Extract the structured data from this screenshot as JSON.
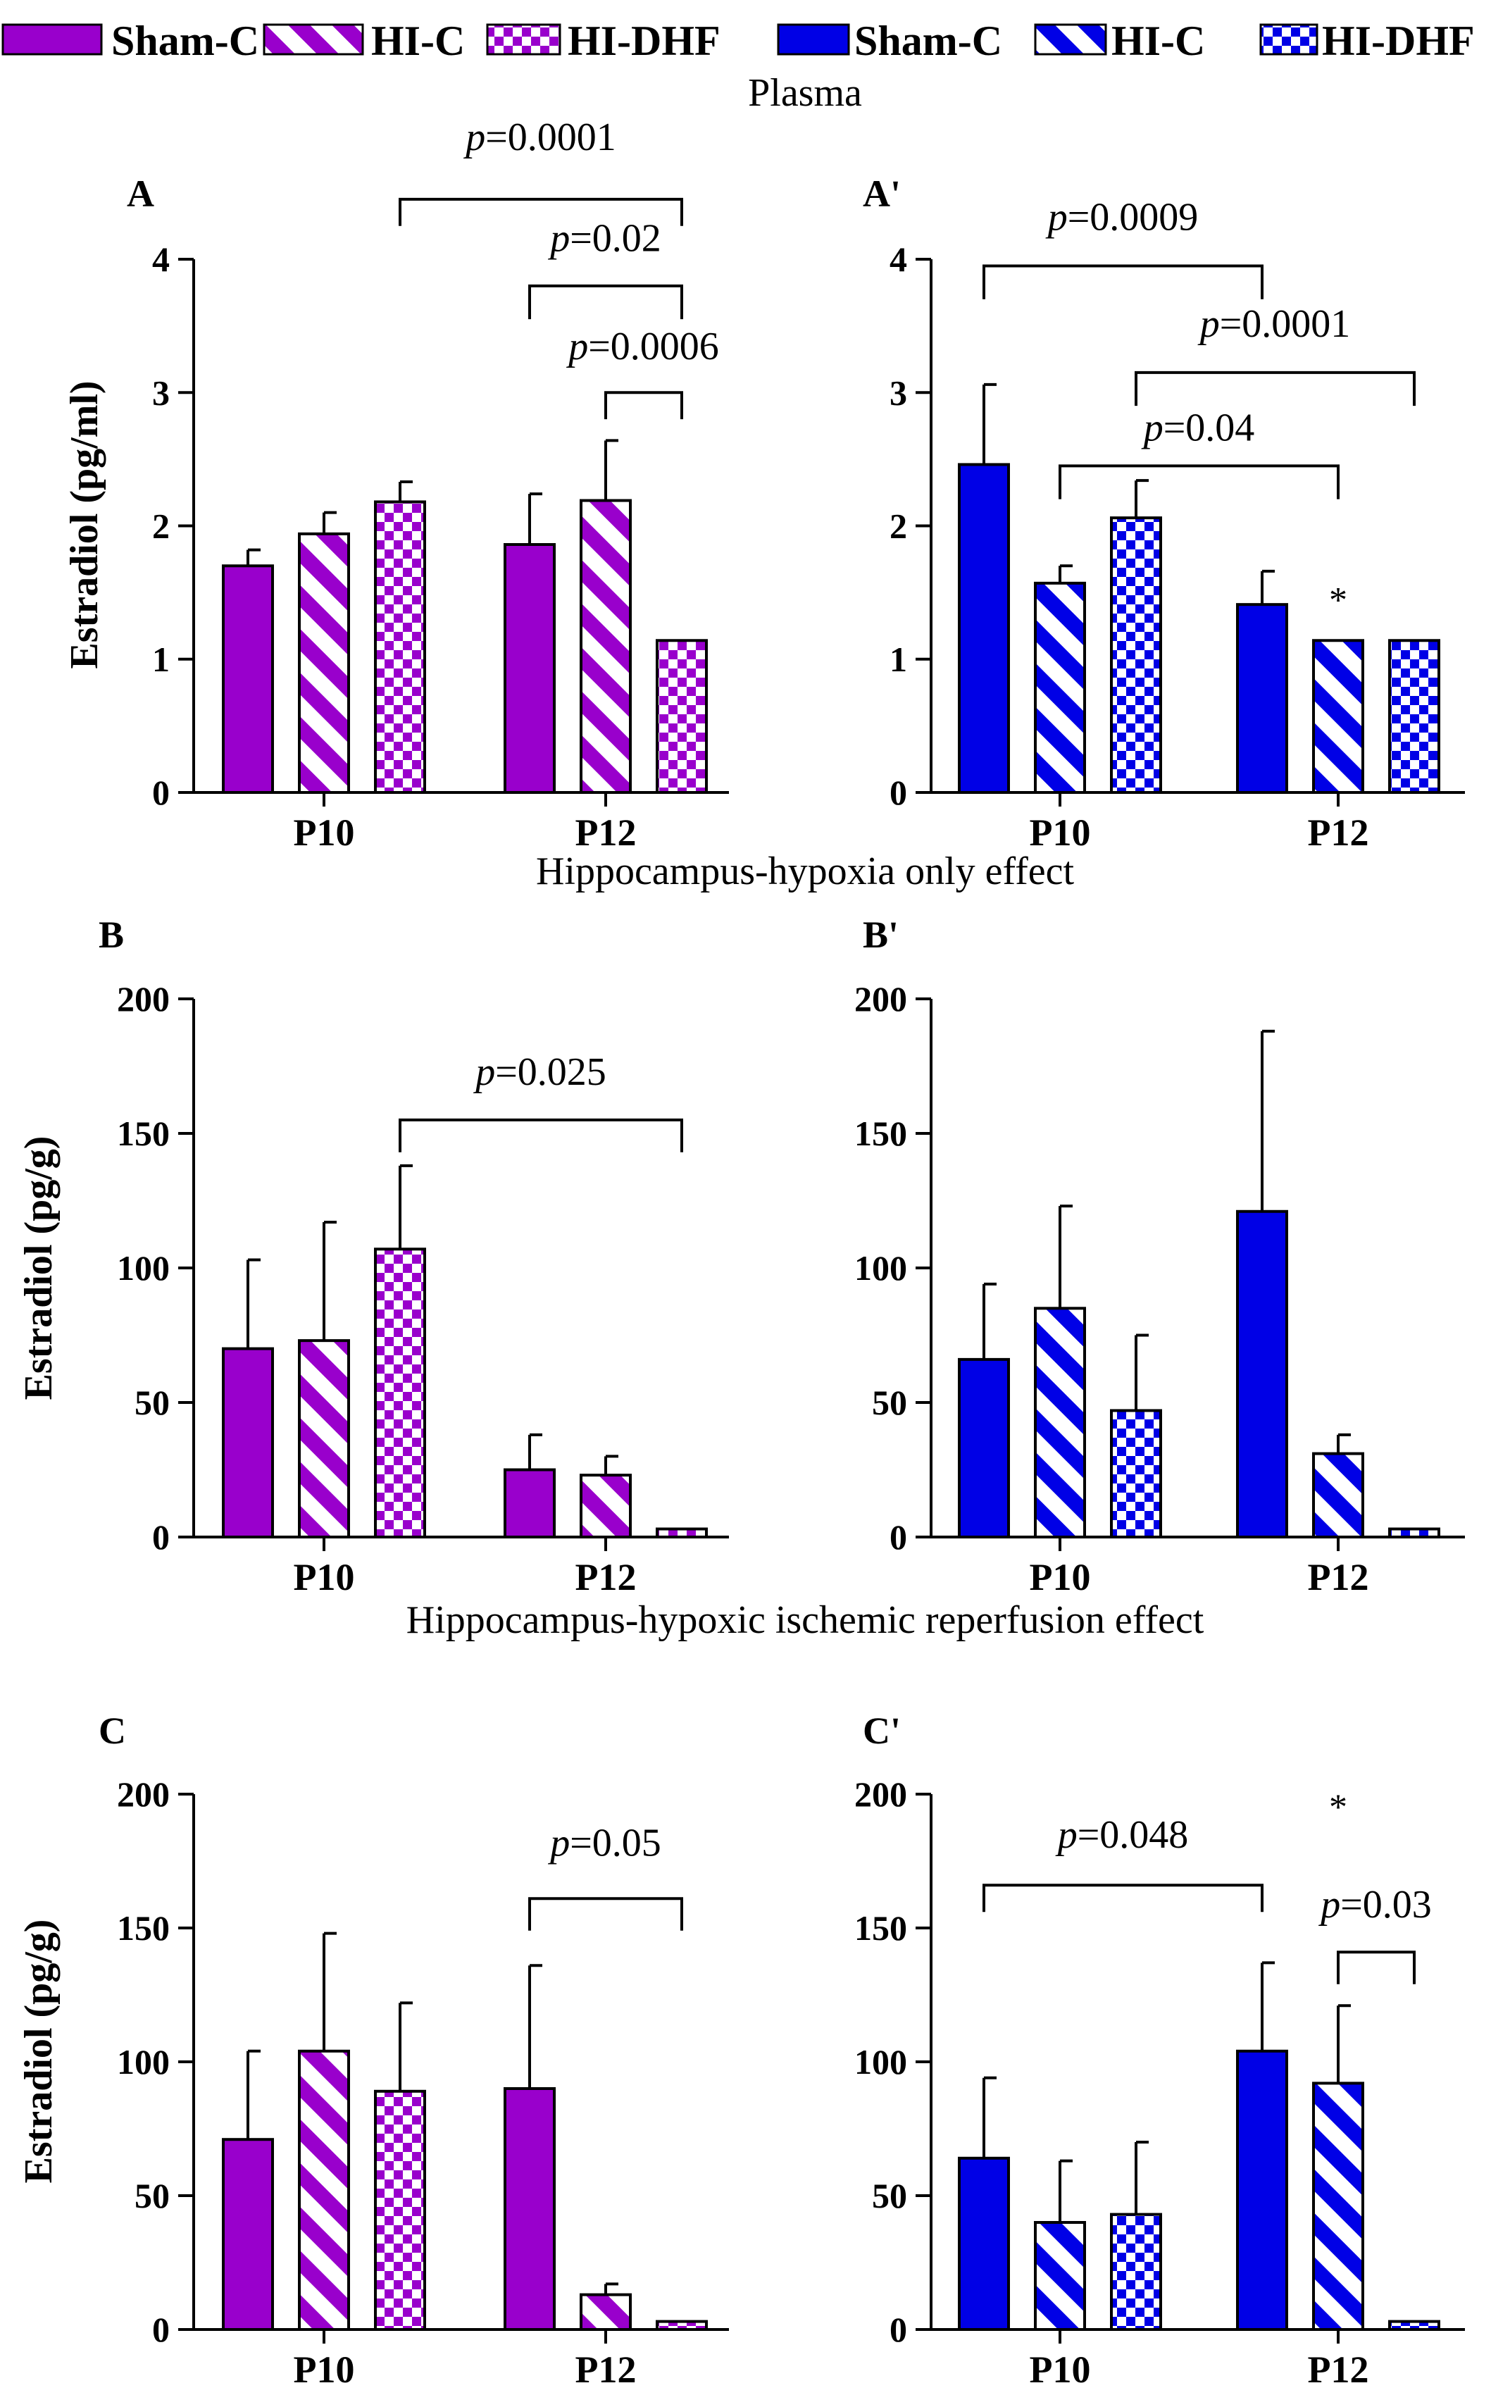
{
  "colors": {
    "purple": "#9900cc",
    "blue": "#0000e6",
    "ink": "#000000"
  },
  "legend": [
    {
      "label": "Sham-C",
      "color": "purple",
      "pattern": "solid"
    },
    {
      "label": "HI-C",
      "color": "purple",
      "pattern": "stripe"
    },
    {
      "label": "HI-DHF",
      "color": "purple",
      "pattern": "checker"
    },
    {
      "label": "Sham-C",
      "color": "blue",
      "pattern": "solid"
    },
    {
      "label": "HI-C",
      "color": "blue",
      "pattern": "stripe"
    },
    {
      "label": "HI-DHF",
      "color": "blue",
      "pattern": "checker"
    }
  ],
  "sections": [
    "Plasma",
    "Hippocampus-hypoxia only effect",
    "Hippocampus-hypoxic ischemic reperfusion effect"
  ],
  "ylabels": [
    "Estradiol (pg/ml)",
    "Estradiol (pg/g)",
    "Estradiol (pg/g)"
  ],
  "chart_data": [
    {
      "panel": "A",
      "type": "bar",
      "color": "purple",
      "categories": [
        "P10",
        "P12"
      ],
      "ylim": [
        0,
        4
      ],
      "yticks": [
        0,
        1,
        2,
        3,
        4
      ],
      "series": [
        {
          "name": "Sham-C",
          "values": [
            1.7,
            1.86
          ],
          "errors": [
            0.12,
            0.38
          ]
        },
        {
          "name": "HI-C",
          "values": [
            1.94,
            2.19
          ],
          "errors": [
            0.16,
            0.45
          ]
        },
        {
          "name": "HI-DHF",
          "values": [
            2.18,
            1.14
          ],
          "errors": [
            0.15,
            0
          ]
        }
      ],
      "comparisons": [
        {
          "from": [
            0,
            2
          ],
          "to": [
            1,
            2
          ],
          "text": "p=0.0001",
          "y": 4.45,
          "drop": 0.2,
          "label_y": 4.82
        },
        {
          "from": [
            1,
            0
          ],
          "to": [
            1,
            2
          ],
          "text": "p=0.02",
          "y": 3.8,
          "drop": 0.25,
          "label_y": 4.06
        },
        {
          "from": [
            1,
            1
          ],
          "to": [
            1,
            2
          ],
          "text": "p=0.0006",
          "y": 3.0,
          "drop": 0.2,
          "label_y": 3.25
        }
      ],
      "stars": []
    },
    {
      "panel": "A'",
      "type": "bar",
      "color": "blue",
      "categories": [
        "P10",
        "P12"
      ],
      "ylim": [
        0,
        4
      ],
      "yticks": [
        0,
        1,
        2,
        3,
        4
      ],
      "series": [
        {
          "name": "Sham-C",
          "values": [
            2.46,
            1.41
          ],
          "errors": [
            0.6,
            0.25
          ]
        },
        {
          "name": "HI-C",
          "values": [
            1.57,
            1.14
          ],
          "errors": [
            0.13,
            0
          ]
        },
        {
          "name": "HI-DHF",
          "values": [
            2.06,
            1.14
          ],
          "errors": [
            0.28,
            0
          ]
        }
      ],
      "comparisons": [
        {
          "from": [
            0,
            0
          ],
          "to": [
            1,
            0
          ],
          "text": "p=0.0009",
          "y": 3.95,
          "drop": 0.25,
          "label_y": 4.22
        },
        {
          "from": [
            0,
            2
          ],
          "to": [
            1,
            2
          ],
          "text": "p=0.0001",
          "y": 3.15,
          "drop": 0.25,
          "label_y": 3.42
        },
        {
          "from": [
            0,
            1
          ],
          "to": [
            1,
            1
          ],
          "text": "p=0.04",
          "y": 2.45,
          "drop": 0.25,
          "label_y": 2.64
        }
      ],
      "stars": [
        {
          "at": [
            1,
            1
          ],
          "y": 1.5,
          "text": "*"
        }
      ]
    },
    {
      "panel": "B",
      "type": "bar",
      "color": "purple",
      "categories": [
        "P10",
        "P12"
      ],
      "ylim": [
        0,
        200
      ],
      "yticks": [
        0,
        50,
        100,
        150,
        200
      ],
      "series": [
        {
          "name": "Sham-C",
          "values": [
            70,
            25
          ],
          "errors": [
            33,
            13
          ]
        },
        {
          "name": "HI-C",
          "values": [
            73,
            23
          ],
          "errors": [
            44,
            7
          ]
        },
        {
          "name": "HI-DHF",
          "values": [
            107,
            3
          ],
          "errors": [
            31,
            0
          ]
        }
      ],
      "comparisons": [
        {
          "from": [
            0,
            2
          ],
          "to": [
            1,
            2
          ],
          "text": "p=0.025",
          "y": 155,
          "drop": 12,
          "label_y": 168
        }
      ],
      "stars": []
    },
    {
      "panel": "B'",
      "type": "bar",
      "color": "blue",
      "categories": [
        "P10",
        "P12"
      ],
      "ylim": [
        0,
        200
      ],
      "yticks": [
        0,
        50,
        100,
        150,
        200
      ],
      "series": [
        {
          "name": "Sham-C",
          "values": [
            66,
            121
          ],
          "errors": [
            28,
            67
          ]
        },
        {
          "name": "HI-C",
          "values": [
            85,
            31
          ],
          "errors": [
            38,
            7
          ]
        },
        {
          "name": "HI-DHF",
          "values": [
            47,
            3
          ],
          "errors": [
            28,
            0
          ]
        }
      ],
      "comparisons": [],
      "stars": []
    },
    {
      "panel": "C",
      "type": "bar",
      "color": "purple",
      "categories": [
        "P10",
        "P12"
      ],
      "ylim": [
        0,
        200
      ],
      "yticks": [
        0,
        50,
        100,
        150,
        200
      ],
      "series": [
        {
          "name": "Sham-C",
          "values": [
            71,
            90
          ],
          "errors": [
            33,
            46
          ]
        },
        {
          "name": "HI-C",
          "values": [
            104,
            13
          ],
          "errors": [
            44,
            4
          ]
        },
        {
          "name": "HI-DHF",
          "values": [
            89,
            3
          ],
          "errors": [
            33,
            0
          ]
        }
      ],
      "comparisons": [
        {
          "from": [
            1,
            0
          ],
          "to": [
            1,
            2
          ],
          "text": "p=0.05",
          "y": 161,
          "drop": 12,
          "label_y": 177
        }
      ],
      "stars": []
    },
    {
      "panel": "C'",
      "type": "bar",
      "color": "blue",
      "categories": [
        "P10",
        "P12"
      ],
      "ylim": [
        0,
        200
      ],
      "yticks": [
        0,
        50,
        100,
        150,
        200
      ],
      "series": [
        {
          "name": "Sham-C",
          "values": [
            64,
            104
          ],
          "errors": [
            30,
            33
          ]
        },
        {
          "name": "HI-C",
          "values": [
            40,
            92
          ],
          "errors": [
            23,
            29
          ]
        },
        {
          "name": "HI-DHF",
          "values": [
            43,
            3
          ],
          "errors": [
            27,
            0
          ]
        }
      ],
      "comparisons": [
        {
          "from": [
            0,
            0
          ],
          "to": [
            1,
            0
          ],
          "text": "p=0.048",
          "y": 166,
          "drop": 10,
          "label_y": 180
        },
        {
          "from": [
            1,
            1
          ],
          "to": [
            1,
            2
          ],
          "text": "p=0.03",
          "y": 141,
          "drop": 12,
          "label_y": 154
        }
      ],
      "stars": [
        {
          "at": [
            1,
            1
          ],
          "y": 198,
          "text": "*"
        }
      ]
    }
  ]
}
